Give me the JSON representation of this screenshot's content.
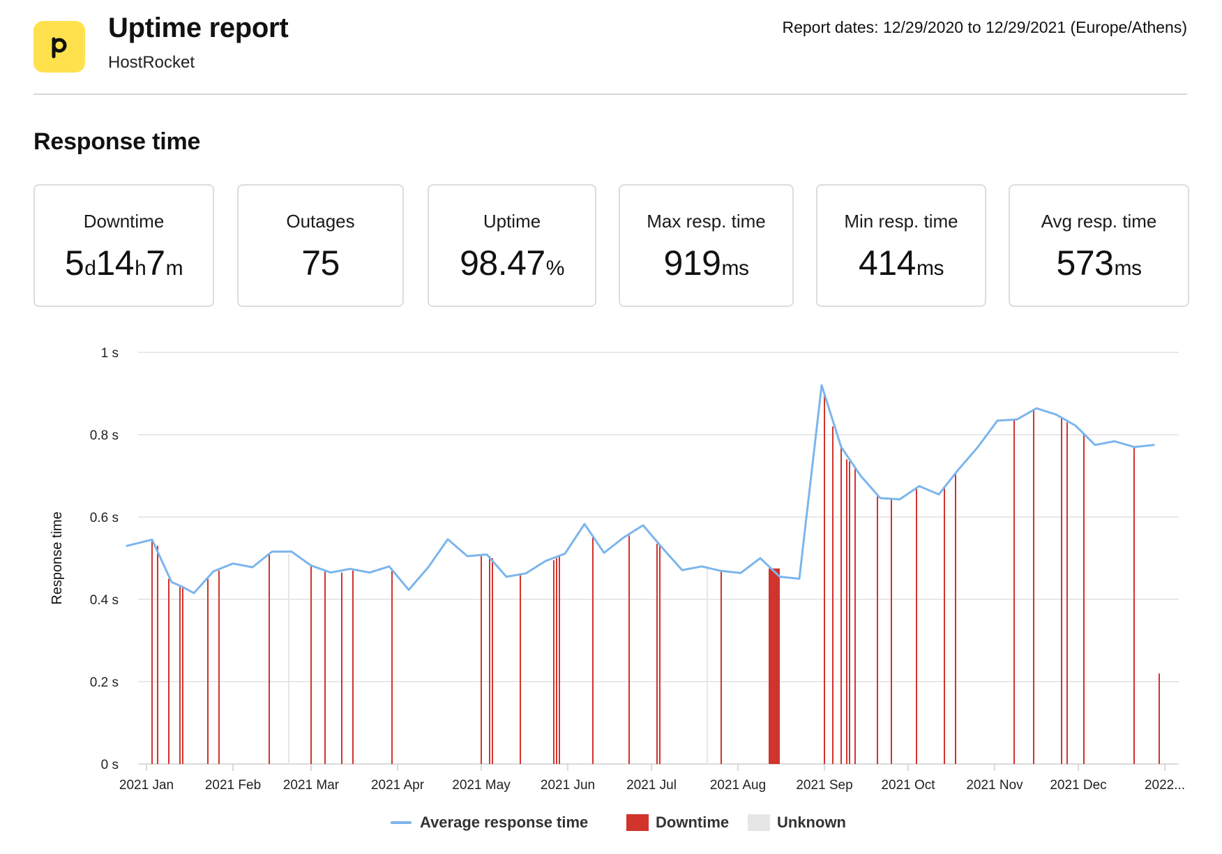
{
  "header": {
    "logo_letter": "P",
    "title": "Uptime report",
    "subtitle": "HostRocket",
    "report_dates": "Report dates: 12/29/2020 to 12/29/2021 (Europe/Athens)"
  },
  "section_title": "Response time",
  "stats": {
    "downtime": {
      "label": "Downtime",
      "d": "5",
      "d_unit": "d",
      "h": "14",
      "h_unit": "h",
      "m": "7",
      "m_unit": "m"
    },
    "outages": {
      "label": "Outages",
      "value": "75"
    },
    "uptime": {
      "label": "Uptime",
      "value": "98.47",
      "unit": "%"
    },
    "max_resp": {
      "label": "Max resp. time",
      "value": "919",
      "unit": "ms"
    },
    "min_resp": {
      "label": "Min resp. time",
      "value": "414",
      "unit": "ms"
    },
    "avg_resp": {
      "label": "Avg resp. time",
      "value": "573",
      "unit": "ms"
    }
  },
  "colors": {
    "line": "#7CB5EC",
    "downtime": "#D0342C",
    "unknown": "#E6E6E6",
    "grid": "#E0E0E0",
    "logo": "#FFE14D"
  },
  "legend": {
    "line": "Average response time",
    "downtime": "Downtime",
    "unknown": "Unknown"
  },
  "chart_data": {
    "type": "line",
    "ylabel": "Response time",
    "ylim": [
      0,
      1
    ],
    "y_ticks": [
      "0 s",
      "0.2 s",
      "0.4 s",
      "0.6 s",
      "0.8 s",
      "1 s"
    ],
    "x_range": [
      "2020-12-29",
      "2022-01-06"
    ],
    "x_ticks": [
      {
        "date": "2021-01-01",
        "label": "2021 Jan"
      },
      {
        "date": "2021-02-01",
        "label": "2021 Feb"
      },
      {
        "date": "2021-03-01",
        "label": "2021 Mar"
      },
      {
        "date": "2021-04-01",
        "label": "2021 Apr"
      },
      {
        "date": "2021-05-01",
        "label": "2021 May"
      },
      {
        "date": "2021-06-01",
        "label": "2021 Jun"
      },
      {
        "date": "2021-07-01",
        "label": "2021 Jul"
      },
      {
        "date": "2021-08-01",
        "label": "2021 Aug"
      },
      {
        "date": "2021-09-01",
        "label": "2021 Sep"
      },
      {
        "date": "2021-10-01",
        "label": "2021 Oct"
      },
      {
        "date": "2021-11-01",
        "label": "2021 Nov"
      },
      {
        "date": "2021-12-01",
        "label": "2021 Dec"
      },
      {
        "date": "2022-01-01",
        "label": "2022..."
      }
    ],
    "series": [
      {
        "name": "Average response time",
        "points": [
          [
            "2020-12-25",
            0.53
          ],
          [
            "2021-01-03",
            0.545
          ],
          [
            "2021-01-10",
            0.442
          ],
          [
            "2021-01-14",
            0.43
          ],
          [
            "2021-01-18",
            0.415
          ],
          [
            "2021-01-25",
            0.468
          ],
          [
            "2021-02-01",
            0.487
          ],
          [
            "2021-02-08",
            0.478
          ],
          [
            "2021-02-15",
            0.516
          ],
          [
            "2021-02-22",
            0.516
          ],
          [
            "2021-03-01",
            0.482
          ],
          [
            "2021-03-08",
            0.465
          ],
          [
            "2021-03-15",
            0.474
          ],
          [
            "2021-03-22",
            0.465
          ],
          [
            "2021-03-29",
            0.48
          ],
          [
            "2021-04-05",
            0.423
          ],
          [
            "2021-04-12",
            0.478
          ],
          [
            "2021-04-19",
            0.546
          ],
          [
            "2021-04-26",
            0.505
          ],
          [
            "2021-05-03",
            0.509
          ],
          [
            "2021-05-10",
            0.455
          ],
          [
            "2021-05-17",
            0.463
          ],
          [
            "2021-05-24",
            0.493
          ],
          [
            "2021-05-31",
            0.511
          ],
          [
            "2021-06-07",
            0.583
          ],
          [
            "2021-06-14",
            0.513
          ],
          [
            "2021-06-21",
            0.55
          ],
          [
            "2021-06-28",
            0.58
          ],
          [
            "2021-07-05",
            0.524
          ],
          [
            "2021-07-12",
            0.471
          ],
          [
            "2021-07-19",
            0.48
          ],
          [
            "2021-07-26",
            0.469
          ],
          [
            "2021-08-02",
            0.464
          ],
          [
            "2021-08-09",
            0.5
          ],
          [
            "2021-08-16",
            0.455
          ],
          [
            "2021-08-23",
            0.45
          ],
          [
            "2021-08-31",
            0.92
          ],
          [
            "2021-09-07",
            0.77
          ],
          [
            "2021-09-14",
            0.7
          ],
          [
            "2021-09-21",
            0.646
          ],
          [
            "2021-09-28",
            0.643
          ],
          [
            "2021-10-05",
            0.675
          ],
          [
            "2021-10-12",
            0.655
          ],
          [
            "2021-10-19",
            0.715
          ],
          [
            "2021-10-26",
            0.77
          ],
          [
            "2021-11-02",
            0.834
          ],
          [
            "2021-11-09",
            0.837
          ],
          [
            "2021-11-16",
            0.864
          ],
          [
            "2021-11-23",
            0.849
          ],
          [
            "2021-11-30",
            0.822
          ],
          [
            "2021-12-07",
            0.775
          ],
          [
            "2021-12-14",
            0.784
          ],
          [
            "2021-12-21",
            0.77
          ],
          [
            "2021-12-28",
            0.775
          ]
        ]
      },
      {
        "name": "Downtime",
        "type": "bar",
        "points": [
          [
            "2021-01-03",
            0.545
          ],
          [
            "2021-01-05",
            0.53
          ],
          [
            "2021-01-09",
            0.45
          ],
          [
            "2021-01-13",
            0.43
          ],
          [
            "2021-01-14",
            0.43
          ],
          [
            "2021-01-23",
            0.45
          ],
          [
            "2021-01-27",
            0.47
          ],
          [
            "2021-02-14",
            0.51
          ],
          [
            "2021-03-01",
            0.48
          ],
          [
            "2021-03-06",
            0.47
          ],
          [
            "2021-03-12",
            0.465
          ],
          [
            "2021-03-16",
            0.47
          ],
          [
            "2021-03-30",
            0.475
          ],
          [
            "2021-05-01",
            0.505
          ],
          [
            "2021-05-04",
            0.505
          ],
          [
            "2021-05-05",
            0.5
          ],
          [
            "2021-05-15",
            0.46
          ],
          [
            "2021-05-27",
            0.495
          ],
          [
            "2021-05-28",
            0.5
          ],
          [
            "2021-05-29",
            0.505
          ],
          [
            "2021-06-10",
            0.555
          ],
          [
            "2021-06-23",
            0.555
          ],
          [
            "2021-07-03",
            0.535
          ],
          [
            "2021-07-04",
            0.53
          ],
          [
            "2021-07-26",
            0.47
          ],
          [
            "2021-09-01",
            0.895
          ],
          [
            "2021-09-04",
            0.82
          ],
          [
            "2021-09-07",
            0.775
          ],
          [
            "2021-09-09",
            0.74
          ],
          [
            "2021-09-10",
            0.735
          ],
          [
            "2021-09-12",
            0.72
          ],
          [
            "2021-09-20",
            0.65
          ],
          [
            "2021-09-25",
            0.645
          ],
          [
            "2021-10-04",
            0.67
          ],
          [
            "2021-10-14",
            0.675
          ],
          [
            "2021-10-18",
            0.705
          ],
          [
            "2021-11-08",
            0.835
          ],
          [
            "2021-11-15",
            0.862
          ],
          [
            "2021-11-25",
            0.84
          ],
          [
            "2021-11-27",
            0.83
          ],
          [
            "2021-12-03",
            0.8
          ],
          [
            "2021-12-21",
            0.77
          ],
          [
            "2021-12-30",
            0.22
          ]
        ],
        "ranges": [
          [
            "2021-08-12",
            "2021-08-16",
            0.475
          ]
        ]
      },
      {
        "name": "Unknown",
        "type": "bar",
        "points": [
          [
            "2021-02-21",
            0.51
          ],
          [
            "2021-07-21",
            0.48
          ]
        ]
      }
    ]
  }
}
